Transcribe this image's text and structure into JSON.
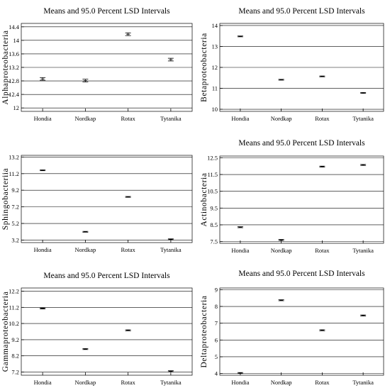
{
  "chart_data": [
    {
      "type": "scatter",
      "title": "Means and 95.0 Percent LSD Intervals",
      "ylabel": "Alphaproteobacteria",
      "categories": [
        "Hondia",
        "Nordkap",
        "Rotax",
        "Tytanika"
      ],
      "ylim": [
        11.9,
        14.5
      ],
      "yticks": [
        "12",
        "12.4",
        "12.8",
        "13.2",
        "13.6",
        "14",
        "14.4"
      ],
      "grid": true,
      "means": [
        12.86,
        12.81,
        14.18,
        13.43
      ],
      "lower": [
        12.82,
        12.77,
        14.14,
        13.39
      ],
      "upper": [
        12.9,
        12.85,
        14.22,
        13.47
      ]
    },
    {
      "type": "scatter",
      "title": "Means and 95.0 Percent LSD Intervals",
      "ylabel": "Betaproteobacteria",
      "categories": [
        "Hondia",
        "Nordkap",
        "Rotax",
        "Tytanika"
      ],
      "ylim": [
        9.9,
        14.1
      ],
      "yticks": [
        "10",
        "11",
        "12",
        "13",
        "14"
      ],
      "grid": true,
      "means": [
        13.48,
        11.41,
        11.57,
        10.78
      ],
      "lower": [
        13.46,
        11.39,
        11.55,
        10.76
      ],
      "upper": [
        13.5,
        11.43,
        11.59,
        10.8
      ]
    },
    {
      "type": "scatter",
      "title": "",
      "ylabel": "Sphingobacteriia",
      "categories": [
        "Hondia",
        "Nordkap",
        "Rotax",
        "Tytanika"
      ],
      "ylim": [
        2.9,
        13.4
      ],
      "yticks": [
        "3.2",
        "5.2",
        "7.2",
        "9.2",
        "11.2",
        "13.2"
      ],
      "grid": true,
      "means": [
        11.6,
        4.2,
        8.4,
        3.3
      ],
      "lower": [
        11.55,
        4.15,
        8.35,
        3.25
      ],
      "upper": [
        11.65,
        4.25,
        8.45,
        3.35
      ]
    },
    {
      "type": "scatter",
      "title": "Means and 95.0 Percent LSD Intervals",
      "ylabel": "Actinobacteria",
      "categories": [
        "Hondia",
        "Nordkap",
        "Rotax",
        "Tytanika"
      ],
      "ylim": [
        7.4,
        12.6
      ],
      "yticks": [
        "7.5",
        "8.5",
        "9.5",
        "10.5",
        "11.5",
        "12.5"
      ],
      "grid": true,
      "means": [
        8.36,
        7.6,
        11.97,
        12.07
      ],
      "lower": [
        8.33,
        7.57,
        11.94,
        12.04
      ],
      "upper": [
        8.39,
        7.63,
        12.0,
        12.1
      ]
    },
    {
      "type": "scatter",
      "title": "Means and 95.0 Percent LSD Intervals",
      "ylabel": "Gammaproteobacteria",
      "categories": [
        "Hondia",
        "Nordkap",
        "Rotax",
        "Tytanika"
      ],
      "ylim": [
        7.0,
        12.4
      ],
      "yticks": [
        "7.2",
        "8.2",
        "9.2",
        "10.2",
        "11.2",
        "12.2"
      ],
      "grid": true,
      "means": [
        11.13,
        8.62,
        9.78,
        7.25
      ],
      "lower": [
        11.1,
        8.59,
        9.75,
        7.22
      ],
      "upper": [
        11.16,
        8.65,
        9.81,
        7.28
      ]
    },
    {
      "type": "scatter",
      "title": "Means and 95.0 Percent LSD Intervals",
      "ylabel": "Deltaproteobacteria",
      "categories": [
        "Hondia",
        "Nordkap",
        "Rotax",
        "Tytanika"
      ],
      "ylim": [
        3.9,
        9.1
      ],
      "yticks": [
        "4",
        "5",
        "6",
        "7",
        "8",
        "9"
      ],
      "grid": true,
      "means": [
        4.03,
        8.37,
        6.58,
        7.46
      ],
      "lower": [
        4.0,
        8.34,
        6.55,
        7.43
      ],
      "upper": [
        4.06,
        8.4,
        6.61,
        7.49
      ]
    }
  ]
}
